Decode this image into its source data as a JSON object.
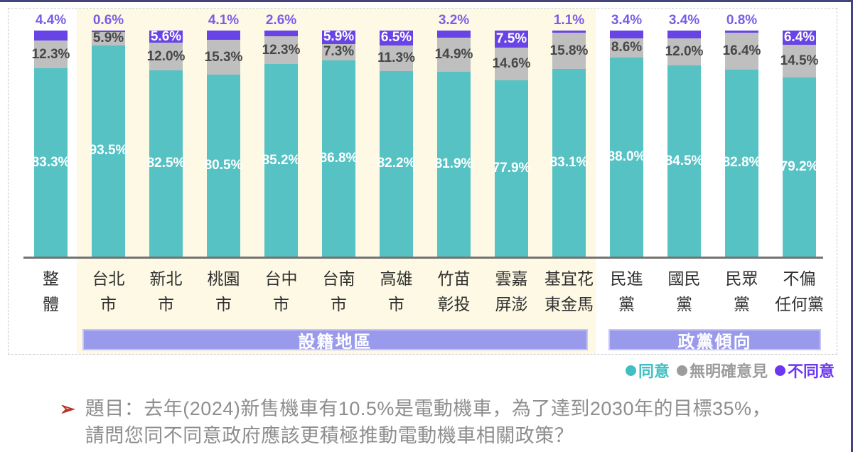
{
  "chart_data": {
    "type": "stacked-bar",
    "unit": "%",
    "stack_total": 100,
    "grid": false,
    "legend_position": "bottom-right",
    "series_names": [
      "同意",
      "無明確意見",
      "不同意"
    ],
    "colors": {
      "agree": "#56c2c4",
      "neutral": "#bfbfbf",
      "disagree": "#6844e6",
      "label_above": "#7a5ce8",
      "band": "#9a9aec",
      "region_background": "#fdf9e4"
    },
    "categories": [
      {
        "label": "整體",
        "label_lines": [
          "整",
          "體"
        ],
        "agree": 83.3,
        "neutral": 12.3,
        "disagree": 4.4,
        "group": "overall"
      },
      {
        "label": "台北市",
        "label_lines": [
          "台北",
          "市"
        ],
        "agree": 93.5,
        "neutral": 5.9,
        "disagree": 0.6,
        "group": "region"
      },
      {
        "label": "新北市",
        "label_lines": [
          "新北",
          "市"
        ],
        "agree": 82.5,
        "neutral": 12.0,
        "disagree": 5.6,
        "group": "region"
      },
      {
        "label": "桃園市",
        "label_lines": [
          "桃園",
          "市"
        ],
        "agree": 80.5,
        "neutral": 15.3,
        "disagree": 4.1,
        "group": "region"
      },
      {
        "label": "台中市",
        "label_lines": [
          "台中",
          "市"
        ],
        "agree": 85.2,
        "neutral": 12.3,
        "disagree": 2.6,
        "group": "region"
      },
      {
        "label": "台南市",
        "label_lines": [
          "台南",
          "市"
        ],
        "agree": 86.8,
        "neutral": 7.3,
        "disagree": 5.9,
        "group": "region"
      },
      {
        "label": "高雄市",
        "label_lines": [
          "高雄",
          "市"
        ],
        "agree": 82.2,
        "neutral": 11.3,
        "disagree": 6.5,
        "group": "region"
      },
      {
        "label": "竹苗彰投",
        "label_lines": [
          "竹苗",
          "彰投"
        ],
        "agree": 81.9,
        "neutral": 14.9,
        "disagree": 3.2,
        "group": "region"
      },
      {
        "label": "雲嘉屏澎",
        "label_lines": [
          "雲嘉",
          "屏澎"
        ],
        "agree": 77.9,
        "neutral": 14.6,
        "disagree": 7.5,
        "group": "region"
      },
      {
        "label": "基宜花東金馬",
        "label_lines": [
          "基宜花",
          "東金馬"
        ],
        "agree": 83.1,
        "neutral": 15.8,
        "disagree": 1.1,
        "group": "region"
      },
      {
        "label": "民進黨",
        "label_lines": [
          "民進",
          "黨"
        ],
        "agree": 88.0,
        "neutral": 8.6,
        "disagree": 3.4,
        "group": "party"
      },
      {
        "label": "國民黨",
        "label_lines": [
          "國民",
          "黨"
        ],
        "agree": 84.5,
        "neutral": 12.0,
        "disagree": 3.4,
        "group": "party"
      },
      {
        "label": "民眾黨",
        "label_lines": [
          "民眾",
          "黨"
        ],
        "agree": 82.8,
        "neutral": 16.4,
        "disagree": 0.8,
        "group": "party"
      },
      {
        "label": "不偏任何黨",
        "label_lines": [
          "不偏",
          "任何黨"
        ],
        "agree": 79.2,
        "neutral": 14.5,
        "disagree": 6.4,
        "group": "party"
      }
    ],
    "groups": [
      {
        "label": "設籍地區"
      },
      {
        "label": "政黨傾向"
      }
    ]
  },
  "legend": {
    "items": [
      {
        "label": "同意",
        "color": "#3fbfc1"
      },
      {
        "label": "無明確意見",
        "color": "#9c9c9c"
      },
      {
        "label": "不同意",
        "color": "#6d35f2"
      }
    ]
  },
  "question": {
    "bullet": "➢",
    "line1": "題目：去年(2024)新售機車有10.5%是電動機車，為了達到2030年的目標35%，",
    "line2": "請問您同不同意政府應該更積極推動電動機車相關政策？"
  }
}
